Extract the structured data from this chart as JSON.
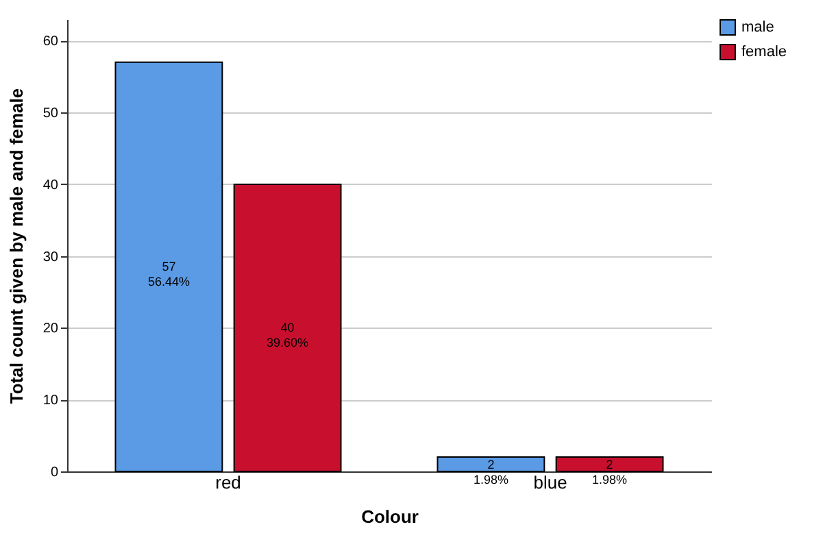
{
  "chart_data": {
    "type": "bar",
    "xlabel": "Colour",
    "ylabel": "Total count given by male and female",
    "categories": [
      "red",
      "blue"
    ],
    "series": [
      {
        "name": "male",
        "color": "#5b9be6",
        "values": [
          57,
          2
        ],
        "value_labels": [
          "57\n56.44%",
          "2\n1.98%"
        ]
      },
      {
        "name": "female",
        "color": "#c8102e",
        "values": [
          40,
          2
        ],
        "value_labels": [
          "40\n39.60%",
          "2\n1.98%"
        ]
      }
    ],
    "ylim": [
      0,
      63
    ],
    "yticks": [
      0,
      10,
      20,
      30,
      40,
      50,
      60
    ],
    "grid": "y",
    "legend": "top right"
  }
}
